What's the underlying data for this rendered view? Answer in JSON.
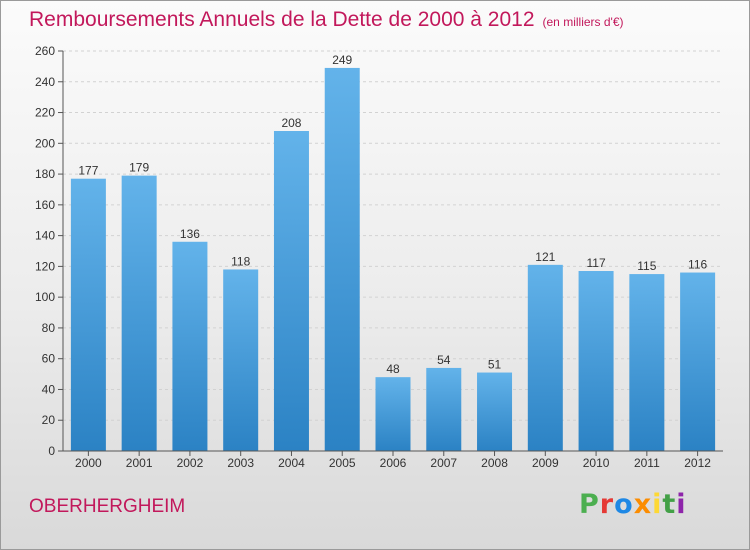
{
  "header": {
    "title": "Remboursements Annuels de la Dette de 2000 à 2012",
    "unit_note": "(en milliers d'€)"
  },
  "footer": {
    "commune": "OBERHERGHEIM",
    "logo_text": "Proxiti",
    "logo_colors": [
      "#4caf50",
      "#e53935",
      "#1e88e5",
      "#fb8c00",
      "#fdd835",
      "#43a047",
      "#8e24aa"
    ]
  },
  "colors": {
    "bar_top": "#63b3ea",
    "bar_bottom": "#2b82c4",
    "title": "#c2185b"
  },
  "chart_data": {
    "type": "bar",
    "title": "Remboursements Annuels de la Dette de 2000 à 2012",
    "categories": [
      "2000",
      "2001",
      "2002",
      "2003",
      "2004",
      "2005",
      "2006",
      "2007",
      "2008",
      "2009",
      "2010",
      "2011",
      "2012"
    ],
    "values": [
      177,
      179,
      136,
      118,
      208,
      249,
      48,
      54,
      51,
      121,
      117,
      115,
      116
    ],
    "ylim": [
      0,
      260
    ],
    "yticks": [
      0,
      20,
      40,
      60,
      80,
      100,
      120,
      140,
      160,
      180,
      200,
      220,
      240,
      260
    ],
    "grid": true,
    "data_labels": true
  }
}
